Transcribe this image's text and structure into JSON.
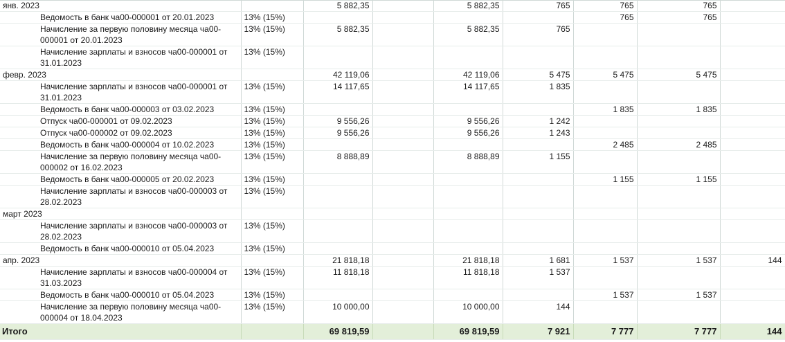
{
  "rows": [
    {
      "type": "group",
      "label": "янв. 2023",
      "rate": "",
      "c2": "5 882,35",
      "c3": "5 882,35",
      "c4": "765",
      "c5": "765",
      "c6": "765",
      "c7": ""
    },
    {
      "type": "doc",
      "label": "Ведомость в банк ча00-000001 от 20.01.2023",
      "rate": "13% (15%)",
      "c2": "",
      "c3": "",
      "c4": "",
      "c5": "765",
      "c6": "765",
      "c7": ""
    },
    {
      "type": "doc",
      "label": "Начисление за первую половину месяца ча00-000001 от 20.01.2023",
      "rate": "13% (15%)",
      "c2": "5 882,35",
      "c3": "5 882,35",
      "c4": "765",
      "c5": "",
      "c6": "",
      "c7": ""
    },
    {
      "type": "doc",
      "label": "Начисление зарплаты и взносов ча00-000001 от 31.01.2023",
      "rate": "13% (15%)",
      "c2": "",
      "c3": "",
      "c4": "",
      "c5": "",
      "c6": "",
      "c7": ""
    },
    {
      "type": "group",
      "label": "февр. 2023",
      "rate": "",
      "c2": "42 119,06",
      "c3": "42 119,06",
      "c4": "5 475",
      "c5": "5 475",
      "c6": "5 475",
      "c7": ""
    },
    {
      "type": "doc",
      "label": "Начисление зарплаты и взносов ча00-000001 от 31.01.2023",
      "rate": "13% (15%)",
      "c2": "14 117,65",
      "c3": "14 117,65",
      "c4": "1 835",
      "c5": "",
      "c6": "",
      "c7": ""
    },
    {
      "type": "doc",
      "label": "Ведомость в банк ча00-000003 от 03.02.2023",
      "rate": "13% (15%)",
      "c2": "",
      "c3": "",
      "c4": "",
      "c5": "1 835",
      "c6": "1 835",
      "c7": ""
    },
    {
      "type": "doc",
      "label": "Отпуск ча00-000001 от 09.02.2023",
      "rate": "13% (15%)",
      "c2": "9 556,26",
      "c3": "9 556,26",
      "c4": "1 242",
      "c5": "",
      "c6": "",
      "c7": ""
    },
    {
      "type": "doc",
      "label": "Отпуск ча00-000002 от 09.02.2023",
      "rate": "13% (15%)",
      "c2": "9 556,26",
      "c3": "9 556,26",
      "c4": "1 243",
      "c5": "",
      "c6": "",
      "c7": ""
    },
    {
      "type": "doc",
      "label": "Ведомость в банк ча00-000004 от 10.02.2023",
      "rate": "13% (15%)",
      "c2": "",
      "c3": "",
      "c4": "",
      "c5": "2 485",
      "c6": "2 485",
      "c7": ""
    },
    {
      "type": "doc",
      "label": "Начисление за первую половину месяца ча00-000002 от 16.02.2023",
      "rate": "13% (15%)",
      "c2": "8 888,89",
      "c3": "8 888,89",
      "c4": "1 155",
      "c5": "",
      "c6": "",
      "c7": ""
    },
    {
      "type": "doc",
      "label": "Ведомость в банк ча00-000005 от 20.02.2023",
      "rate": "13% (15%)",
      "c2": "",
      "c3": "",
      "c4": "",
      "c5": "1 155",
      "c6": "1 155",
      "c7": ""
    },
    {
      "type": "doc",
      "label": "Начисление зарплаты и взносов ча00-000003 от 28.02.2023",
      "rate": "13% (15%)",
      "c2": "",
      "c3": "",
      "c4": "",
      "c5": "",
      "c6": "",
      "c7": ""
    },
    {
      "type": "group",
      "label": "март 2023",
      "rate": "",
      "c2": "",
      "c3": "",
      "c4": "",
      "c5": "",
      "c6": "",
      "c7": ""
    },
    {
      "type": "doc",
      "label": "Начисление зарплаты и взносов ча00-000003 от 28.02.2023",
      "rate": "13% (15%)",
      "c2": "",
      "c3": "",
      "c4": "",
      "c5": "",
      "c6": "",
      "c7": ""
    },
    {
      "type": "doc",
      "label": "Ведомость в банк ча00-000010 от 05.04.2023",
      "rate": "13% (15%)",
      "c2": "",
      "c3": "",
      "c4": "",
      "c5": "",
      "c6": "",
      "c7": ""
    },
    {
      "type": "group",
      "label": "апр. 2023",
      "rate": "",
      "c2": "21 818,18",
      "c3": "21 818,18",
      "c4": "1 681",
      "c5": "1 537",
      "c6": "1 537",
      "c7": "144"
    },
    {
      "type": "doc",
      "label": "Начисление зарплаты и взносов ча00-000004 от 31.03.2023",
      "rate": "13% (15%)",
      "c2": "11 818,18",
      "c3": "11 818,18",
      "c4": "1 537",
      "c5": "",
      "c6": "",
      "c7": ""
    },
    {
      "type": "doc",
      "label": "Ведомость в банк ча00-000010 от 05.04.2023",
      "rate": "13% (15%)",
      "c2": "",
      "c3": "",
      "c4": "",
      "c5": "1 537",
      "c6": "1 537",
      "c7": ""
    },
    {
      "type": "doc",
      "label": "Начисление за первую половину месяца ча00-000004 от 18.04.2023",
      "rate": "13% (15%)",
      "c2": "10 000,00",
      "c3": "10 000,00",
      "c4": "144",
      "c5": "",
      "c6": "",
      "c7": ""
    }
  ],
  "total": {
    "label": "Итого",
    "c2": "69 819,59",
    "c3": "69 819,59",
    "c4": "7 921",
    "c5": "7 777",
    "c6": "7 777",
    "c7": "144"
  }
}
